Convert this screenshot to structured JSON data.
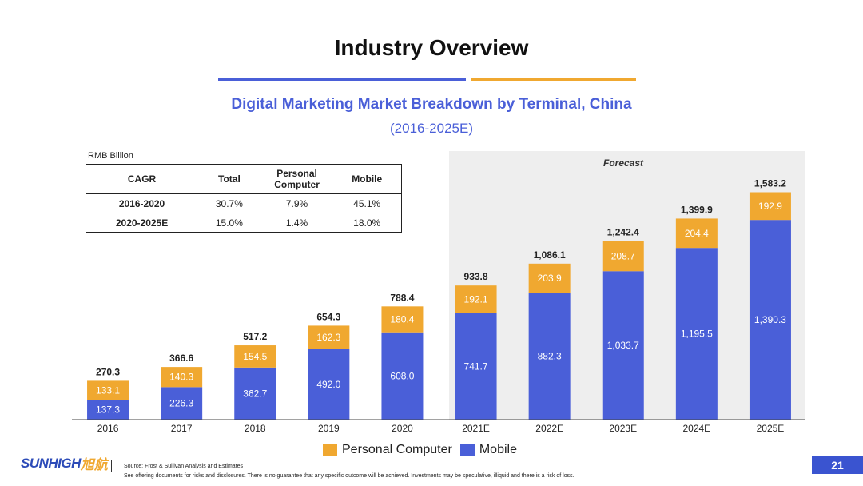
{
  "page": {
    "title": "Industry Overview",
    "page_number": "21",
    "source_note": "Source: Frost & Sullivan Analysis and Estimates",
    "disclaimer": "See offering documents for risks and disclosures. There is no guarantee that any specific outcome will be achieved. Investments may be speculative, illiquid and there is a risk of loss.",
    "logo_text": "SUNHIGH",
    "logo_cn": "旭航"
  },
  "colors": {
    "mobile": "#4a5fd8",
    "pc": "#f0a830",
    "forecast_bg": "#eeeeee",
    "title_accent": "#4a5fd8"
  },
  "cagr_table": {
    "headers": [
      "CAGR",
      "Total",
      "Personal Computer",
      "Mobile"
    ],
    "rows": [
      [
        "2016-2020",
        "30.7%",
        "7.9%",
        "45.1%"
      ],
      [
        "2020-2025E",
        "15.0%",
        "1.4%",
        "18.0%"
      ]
    ]
  },
  "chart_data": {
    "type": "bar",
    "stacked": true,
    "title": "Digital Marketing Market Breakdown by Terminal, China",
    "subtitle": "(2016-2025E)",
    "unit_label": "RMB Billion",
    "forecast_label": "Forecast",
    "forecast_start_category": "2021E",
    "categories": [
      "2016",
      "2017",
      "2018",
      "2019",
      "2020",
      "2021E",
      "2022E",
      "2023E",
      "2024E",
      "2025E"
    ],
    "series": [
      {
        "name": "Mobile",
        "values": [
          137.3,
          226.3,
          362.7,
          492.0,
          608.0,
          741.7,
          882.3,
          1033.7,
          1195.5,
          1390.3
        ],
        "labels": [
          "137.3",
          "226.3",
          "362.7",
          "492.0",
          "608.0",
          "741.7",
          "882.3",
          "1,033.7",
          "1,195.5",
          "1,390.3"
        ]
      },
      {
        "name": "Personal Computer",
        "values": [
          133.1,
          140.3,
          154.5,
          162.3,
          180.4,
          192.1,
          203.9,
          208.7,
          204.4,
          192.9
        ],
        "labels": [
          "133.1",
          "140.3",
          "154.5",
          "162.3",
          "180.4",
          "192.1",
          "203.9",
          "208.7",
          "204.4",
          "192.9"
        ]
      }
    ],
    "totals": [
      "270.3",
      "366.6",
      "517.2",
      "654.3",
      "788.4",
      "933.8",
      "1,086.1",
      "1,242.4",
      "1,399.9",
      "1,583.2"
    ],
    "legend": [
      "Personal Computer",
      "Mobile"
    ],
    "legend_position": "bottom",
    "ylim": [
      0,
      1583.2
    ],
    "grid": false
  }
}
